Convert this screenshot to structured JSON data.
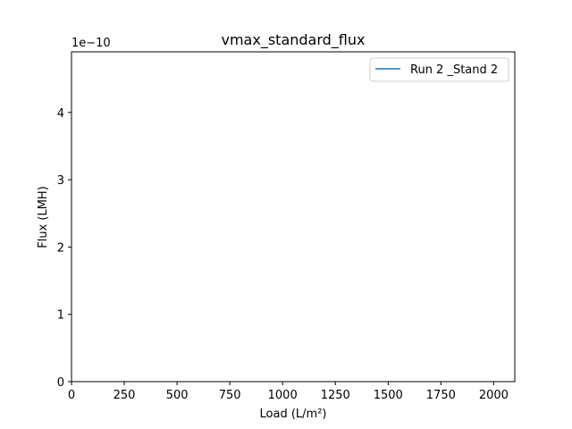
{
  "chart_data": {
    "type": "line",
    "title": "vmax_standard_flux",
    "xlabel": "Load (L/m²)",
    "ylabel": "Flux (LMH)",
    "y_offset_text": "1e−10",
    "xlim": [
      0,
      2100
    ],
    "ylim": [
      0,
      4.9
    ],
    "x_ticks": [
      0,
      250,
      500,
      750,
      1000,
      1250,
      1500,
      1750,
      2000
    ],
    "x_tick_labels": [
      "0",
      "250",
      "500",
      "750",
      "1000",
      "1250",
      "1500",
      "1750",
      "2000"
    ],
    "y_ticks": [
      0,
      1,
      2,
      3,
      4
    ],
    "y_tick_labels": [
      "0",
      "1",
      "2",
      "3",
      "4"
    ],
    "grid": false,
    "legend_position": "top-right",
    "series": [
      {
        "name": "Run 2 _Stand 2",
        "color": "#1f77b4",
        "x": [],
        "y": []
      }
    ]
  }
}
